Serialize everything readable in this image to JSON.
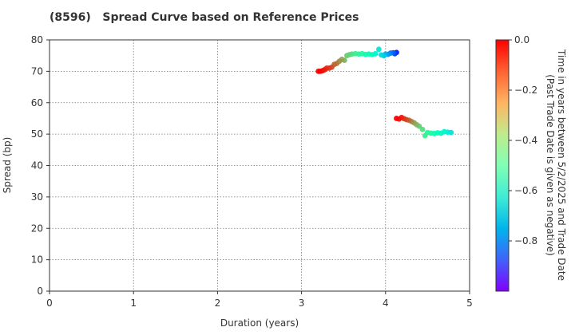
{
  "chart_data": {
    "type": "scatter",
    "title": "(8596)   Spread Curve based on Reference Prices",
    "xlabel": "Duration (years)",
    "ylabel": "Spread (bp)",
    "xlim": [
      0,
      5
    ],
    "ylim": [
      0,
      80
    ],
    "xticks": [
      "0",
      "1",
      "2",
      "3",
      "4",
      "5"
    ],
    "yticks": [
      "0",
      "10",
      "20",
      "30",
      "40",
      "50",
      "60",
      "70",
      "80"
    ],
    "grid": true,
    "colorbar": {
      "label_line1": "Time in years between 5/2/2025 and Trade Date",
      "label_line2": "(Past Trade Date is given as negative)",
      "range": [
        -1.0,
        0.0
      ],
      "ticks": [
        "0.0",
        "−0.2",
        "−0.4",
        "−0.6",
        "−0.8"
      ],
      "colormap": "rainbow"
    },
    "series": [
      {
        "points": [
          {
            "x": 3.2,
            "y": 70.0,
            "c": 0.0
          },
          {
            "x": 3.22,
            "y": 70.0,
            "c": -0.01
          },
          {
            "x": 3.24,
            "y": 70.1,
            "c": -0.02
          },
          {
            "x": 3.26,
            "y": 70.3,
            "c": -0.03
          },
          {
            "x": 3.28,
            "y": 70.6,
            "c": -0.05
          },
          {
            "x": 3.3,
            "y": 71.0,
            "c": -0.06
          },
          {
            "x": 3.33,
            "y": 71.0,
            "c": -0.08
          },
          {
            "x": 3.36,
            "y": 71.3,
            "c": -0.1
          },
          {
            "x": 3.39,
            "y": 72.2,
            "c": -0.13
          },
          {
            "x": 3.42,
            "y": 72.5,
            "c": -0.16
          },
          {
            "x": 3.45,
            "y": 73.2,
            "c": -0.19
          },
          {
            "x": 3.48,
            "y": 73.8,
            "c": -0.22
          },
          {
            "x": 3.51,
            "y": 73.5,
            "c": -0.25
          },
          {
            "x": 3.54,
            "y": 75.0,
            "c": -0.3
          },
          {
            "x": 3.57,
            "y": 75.3,
            "c": -0.33
          },
          {
            "x": 3.6,
            "y": 75.5,
            "c": -0.36
          },
          {
            "x": 3.64,
            "y": 75.6,
            "c": -0.39
          },
          {
            "x": 3.68,
            "y": 75.5,
            "c": -0.42
          },
          {
            "x": 3.72,
            "y": 75.6,
            "c": -0.45
          },
          {
            "x": 3.76,
            "y": 75.4,
            "c": -0.48
          },
          {
            "x": 3.8,
            "y": 75.5,
            "c": -0.52
          },
          {
            "x": 3.84,
            "y": 75.3,
            "c": -0.56
          },
          {
            "x": 3.88,
            "y": 75.6,
            "c": -0.6
          },
          {
            "x": 3.92,
            "y": 77.0,
            "c": -0.64
          },
          {
            "x": 3.95,
            "y": 75.2,
            "c": -0.68
          },
          {
            "x": 3.98,
            "y": 75.0,
            "c": -0.72
          },
          {
            "x": 4.0,
            "y": 75.5,
            "c": -0.76
          },
          {
            "x": 4.03,
            "y": 75.4,
            "c": -0.8
          },
          {
            "x": 4.06,
            "y": 75.8,
            "c": -0.84
          },
          {
            "x": 4.09,
            "y": 75.9,
            "c": -0.88
          },
          {
            "x": 4.11,
            "y": 75.6,
            "c": -0.92
          },
          {
            "x": 4.13,
            "y": 76.0,
            "c": -0.96
          }
        ]
      },
      {
        "points": [
          {
            "x": 4.13,
            "y": 55.0,
            "c": 0.0
          },
          {
            "x": 4.16,
            "y": 54.8,
            "c": -0.02
          },
          {
            "x": 4.19,
            "y": 55.3,
            "c": -0.04
          },
          {
            "x": 4.22,
            "y": 54.9,
            "c": -0.07
          },
          {
            "x": 4.25,
            "y": 54.6,
            "c": -0.1
          },
          {
            "x": 4.28,
            "y": 54.4,
            "c": -0.14
          },
          {
            "x": 4.31,
            "y": 54.0,
            "c": -0.18
          },
          {
            "x": 4.34,
            "y": 53.6,
            "c": -0.22
          },
          {
            "x": 4.37,
            "y": 53.0,
            "c": -0.26
          },
          {
            "x": 4.4,
            "y": 52.5,
            "c": -0.3
          },
          {
            "x": 4.44,
            "y": 51.5,
            "c": -0.34
          },
          {
            "x": 4.47,
            "y": 49.5,
            "c": -0.38
          },
          {
            "x": 4.5,
            "y": 50.5,
            "c": -0.42
          },
          {
            "x": 4.54,
            "y": 50.3,
            "c": -0.46
          },
          {
            "x": 4.58,
            "y": 50.2,
            "c": -0.5
          },
          {
            "x": 4.62,
            "y": 50.4,
            "c": -0.53
          },
          {
            "x": 4.66,
            "y": 50.3,
            "c": -0.56
          },
          {
            "x": 4.7,
            "y": 50.8,
            "c": -0.59
          },
          {
            "x": 4.74,
            "y": 50.6,
            "c": -0.62
          },
          {
            "x": 4.78,
            "y": 50.5,
            "c": -0.65
          }
        ]
      }
    ]
  }
}
